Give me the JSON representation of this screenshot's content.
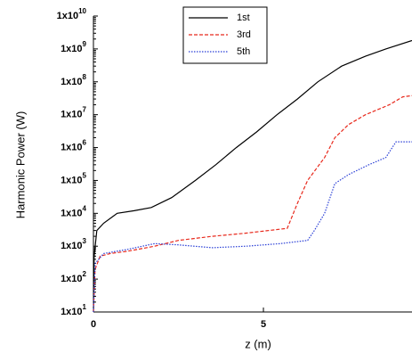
{
  "chart_data": {
    "type": "line",
    "log_y": true,
    "xlabel": "z (m)",
    "ylabel": "Harmonic Power (W)",
    "xlim": [
      0,
      9.37
    ],
    "xticks": [
      0,
      5
    ],
    "ylim": [
      10,
      10000000000
    ],
    "yticks": [
      {
        "value": 10,
        "label": "1x10^1"
      },
      {
        "value": 100,
        "label": "1x10^2"
      },
      {
        "value": 1000,
        "label": "1x10^3"
      },
      {
        "value": 10000,
        "label": "1x10^4"
      },
      {
        "value": 100000,
        "label": "1x10^5"
      },
      {
        "value": 1000000,
        "label": "1x10^6"
      },
      {
        "value": 10000000,
        "label": "1x10^7"
      },
      {
        "value": 100000000,
        "label": "1x10^8"
      },
      {
        "value": 1000000000,
        "label": "1x10^9"
      },
      {
        "value": 10000000000,
        "label": "1x10^10"
      }
    ],
    "legend": "top",
    "series": [
      {
        "name": "1st",
        "color": "#000000",
        "line_style": "solid",
        "x": [
          0,
          0.02,
          0.1,
          0.3,
          0.7,
          1.2,
          1.7,
          2.3,
          3,
          3.6,
          4.2,
          4.8,
          5.4,
          6.0,
          6.6,
          7.3,
          8,
          8.6,
          9.37
        ],
        "values": [
          10,
          500,
          3000,
          5000,
          10000,
          12000,
          15000,
          30000,
          100000,
          300000,
          1000000,
          3000000,
          10000000,
          30000000,
          100000000,
          300000000,
          600000000,
          1000000000,
          1800000000
        ]
      },
      {
        "name": "3rd",
        "color": "#e8291c",
        "line_style": "dashed",
        "x": [
          0,
          0.05,
          0.2,
          0.5,
          1,
          1.8,
          2.5,
          3.5,
          4.5,
          5.7,
          6.0,
          6.3,
          6.8,
          7.1,
          7.5,
          8,
          8.7,
          9.1,
          9.37
        ],
        "values": [
          10,
          200,
          500,
          600,
          700,
          1000,
          1500,
          2000,
          2500,
          3500,
          20000,
          100000,
          500000,
          2000000,
          5000000,
          10000000,
          20000000,
          35000000,
          38000000
        ]
      },
      {
        "name": "5th",
        "color": "#2a3fd6",
        "line_style": "dotted",
        "x": [
          0,
          0.05,
          0.3,
          1,
          1.8,
          2.5,
          3.5,
          4.5,
          5.5,
          6.3,
          6.5,
          6.8,
          7.1,
          7.5,
          8.1,
          8.6,
          8.9,
          9.37
        ],
        "values": [
          10,
          300,
          600,
          800,
          1200,
          1100,
          900,
          1000,
          1200,
          1500,
          3000,
          10000,
          80000,
          150000,
          300000,
          500000,
          1500000,
          1500000
        ]
      }
    ]
  }
}
